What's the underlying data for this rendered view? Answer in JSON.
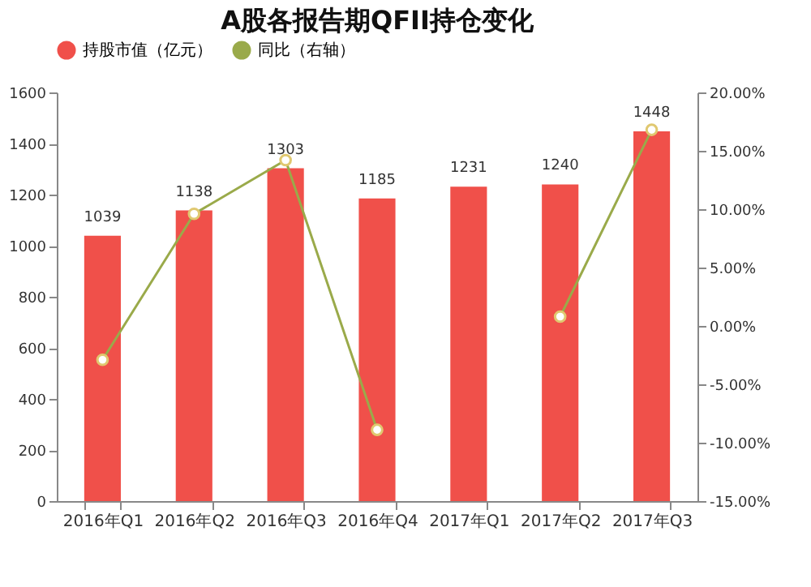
{
  "chart_data": {
    "type": "bar",
    "title": "A股各报告期QFII持仓变化",
    "categories": [
      "2016年Q1",
      "2016年Q2",
      "2016年Q3",
      "2016年Q4",
      "2017年Q1",
      "2017年Q2",
      "2017年Q3"
    ],
    "series": [
      {
        "name": "持股市值（亿元）",
        "color": "#f0504a",
        "values": [
          1039,
          1138,
          1303,
          1185,
          1231,
          1240,
          1448
        ],
        "value_labels": [
          "1039",
          "1138",
          "1303",
          "1185",
          "1231",
          "1240",
          "1448"
        ]
      },
      {
        "name": "同比（右轴）",
        "type": "line",
        "axis": "y2",
        "color": "#9aaa4a",
        "marker": "circle",
        "values": [
          -2.9,
          9.6,
          14.2,
          -8.9,
          null,
          0.8,
          16.8
        ]
      }
    ],
    "ylim": [
      0,
      1600
    ],
    "yticks": [
      0,
      200,
      400,
      600,
      800,
      1000,
      1200,
      1400,
      1600
    ],
    "y2lim": [
      -15,
      20
    ],
    "y2ticks": [
      {
        "value": -15,
        "label": "-15.00%"
      },
      {
        "value": -10,
        "label": "-10.00%"
      },
      {
        "value": -5,
        "label": "-5.00%"
      },
      {
        "value": 0,
        "label": "0.00%"
      },
      {
        "value": 5,
        "label": "5.00%"
      },
      {
        "value": 10,
        "label": "10.00%"
      },
      {
        "value": 15,
        "label": "15.00%"
      },
      {
        "value": 20,
        "label": "20.00%"
      }
    ],
    "legend": "top",
    "grid": false
  }
}
